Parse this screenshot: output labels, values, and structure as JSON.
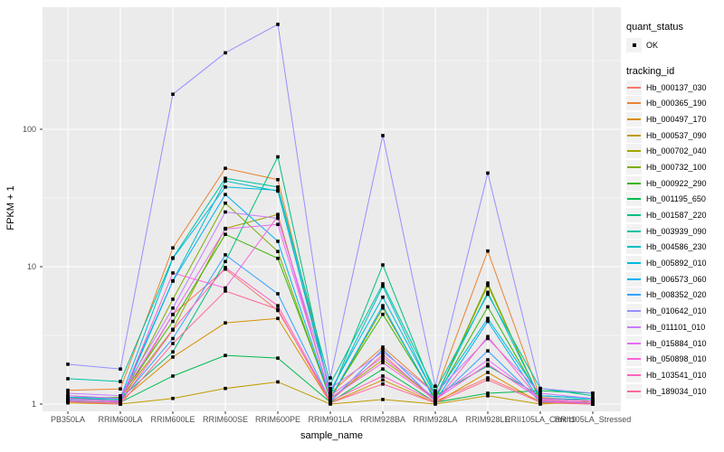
{
  "figure": {
    "y_axis": {
      "title": "FPKM + 1",
      "tick_labels": [
        "100",
        "10",
        "1"
      ],
      "tick_values": [
        100,
        10,
        1
      ]
    },
    "x_axis": {
      "title": "sample_name"
    },
    "legend": {
      "quant_status": {
        "title": "quant_status",
        "items": [
          {
            "label": "OK",
            "marker": "black-point"
          }
        ]
      },
      "tracking_id": {
        "title": "tracking_id"
      }
    },
    "style": {
      "panel_bg": "#ebebeb",
      "grid_color": "#ffffff",
      "legend_key_bg": "#f2f2f2",
      "tick_text_color": "#4d4d4d",
      "point_color": "#000000"
    }
  },
  "chart_data": {
    "type": "line",
    "yscale": "log10",
    "title": "",
    "xlabel": "sample_name",
    "ylabel": "FPKM + 1",
    "ylim": [
      0.9,
      772
    ],
    "y_major_ticks": [
      1,
      10,
      100
    ],
    "y_minor_ticks": [
      3.1623,
      31.623,
      316.23
    ],
    "grid": true,
    "legend_position": "right",
    "point_marker": "black-square",
    "x": [
      "PB350LA",
      "RRIM600LA",
      "RRIM600LE",
      "RRIM600SE",
      "RRIM600PE",
      "RRIM901LA",
      "RRIM928BA",
      "RRIM928LA",
      "RRIM928LE",
      "RRII105LA_Control",
      "RRII105LA_Stressed"
    ],
    "series": [
      {
        "name": "Hb_000137_030",
        "color": "#F8766D",
        "values": [
          1.05,
          1.02,
          4.5,
          9.6,
          4.8,
          1.05,
          2.3,
          1.05,
          1.55,
          1.05,
          1.02
        ]
      },
      {
        "name": "Hb_000365_190",
        "color": "#EA8331",
        "values": [
          1.26,
          1.29,
          13.7,
          52,
          43,
          1.2,
          2.6,
          1.2,
          13,
          1.12,
          1.05
        ]
      },
      {
        "name": "Hb_000497_170",
        "color": "#D89000",
        "values": [
          1.1,
          1.05,
          2.2,
          3.9,
          4.2,
          1.02,
          1.5,
          1.02,
          1.7,
          1.02,
          1.0
        ]
      },
      {
        "name": "Hb_000537_090",
        "color": "#C09B00",
        "values": [
          1.02,
          1.0,
          1.1,
          1.3,
          1.45,
          1.0,
          1.08,
          1.0,
          1.15,
          1.0,
          1.05
        ]
      },
      {
        "name": "Hb_000702_040",
        "color": "#A3A500",
        "values": [
          1.12,
          1.1,
          3.5,
          19,
          24,
          1.1,
          2.1,
          1.1,
          7.3,
          1.08,
          1.02
        ]
      },
      {
        "name": "Hb_000732_100",
        "color": "#7CAE00",
        "values": [
          1.08,
          1.06,
          5.8,
          29,
          12.9,
          1.08,
          5.0,
          1.08,
          7.6,
          1.05,
          1.0
        ]
      },
      {
        "name": "Hb_000922_290",
        "color": "#39B600",
        "values": [
          1.1,
          1.12,
          4.0,
          17.2,
          11.5,
          1.12,
          4.5,
          1.1,
          5.1,
          1.1,
          1.05
        ]
      },
      {
        "name": "Hb_001195_650",
        "color": "#00BB4E",
        "values": [
          1.05,
          1.03,
          1.6,
          2.26,
          2.16,
          1.03,
          1.8,
          1.03,
          1.2,
          1.25,
          1.2
        ]
      },
      {
        "name": "Hb_001587_220",
        "color": "#00BF7D",
        "values": [
          1.15,
          1.1,
          2.4,
          10.9,
          63,
          1.15,
          10.3,
          1.15,
          1.9,
          1.15,
          1.1
        ]
      },
      {
        "name": "Hb_003939_090",
        "color": "#00C1A3",
        "values": [
          1.53,
          1.46,
          11.6,
          44,
          38,
          1.4,
          7.5,
          1.25,
          6.3,
          1.3,
          1.15
        ]
      },
      {
        "name": "Hb_004586_230",
        "color": "#00BFC4",
        "values": [
          1.1,
          1.08,
          7.9,
          42,
          35.5,
          1.2,
          7.2,
          1.12,
          6.5,
          1.1,
          1.08
        ]
      },
      {
        "name": "Hb_005892_010",
        "color": "#00BAE0",
        "values": [
          1.12,
          1.1,
          11.5,
          38,
          36,
          1.25,
          6.0,
          1.15,
          4.2,
          1.15,
          1.1
        ]
      },
      {
        "name": "Hb_006573_060",
        "color": "#00B0F6",
        "values": [
          1.05,
          1.04,
          7.85,
          33.5,
          15.3,
          1.1,
          5.2,
          1.05,
          4.0,
          1.05,
          1.02
        ]
      },
      {
        "name": "Hb_008352_020",
        "color": "#35A2FF",
        "values": [
          1.08,
          1.06,
          3.0,
          12.2,
          6.35,
          1.05,
          2.5,
          1.06,
          2.44,
          1.04,
          1.0
        ]
      },
      {
        "name": "Hb_010642_010",
        "color": "#9590FF",
        "values": [
          1.95,
          1.8,
          180,
          360,
          580,
          1.55,
          90,
          1.35,
          48,
          1.3,
          1.2
        ]
      },
      {
        "name": "Hb_011101_010",
        "color": "#C77CFF",
        "values": [
          1.2,
          1.15,
          5.0,
          25,
          22.5,
          1.3,
          2.4,
          1.2,
          3.0,
          1.2,
          1.1
        ]
      },
      {
        "name": "Hb_015884_010",
        "color": "#E76BF3",
        "values": [
          1.15,
          1.1,
          4.48,
          18.8,
          20.3,
          1.15,
          2.2,
          1.1,
          2.1,
          1.1,
          1.05
        ]
      },
      {
        "name": "Hb_050898_010",
        "color": "#FA62DB",
        "values": [
          1.1,
          1.05,
          9.0,
          7.0,
          23.3,
          1.1,
          2.0,
          1.08,
          1.95,
          1.08,
          1.02
        ]
      },
      {
        "name": "Hb_103541_010",
        "color": "#FF62BC",
        "values": [
          1.06,
          1.03,
          3.46,
          9.85,
          5.2,
          1.05,
          1.6,
          1.04,
          3.1,
          1.06,
          1.0
        ]
      },
      {
        "name": "Hb_189034_010",
        "color": "#FF6A98",
        "values": [
          1.04,
          1.0,
          2.76,
          6.65,
          4.9,
          1.02,
          1.4,
          1.02,
          1.5,
          1.03,
          1.0
        ]
      }
    ]
  }
}
